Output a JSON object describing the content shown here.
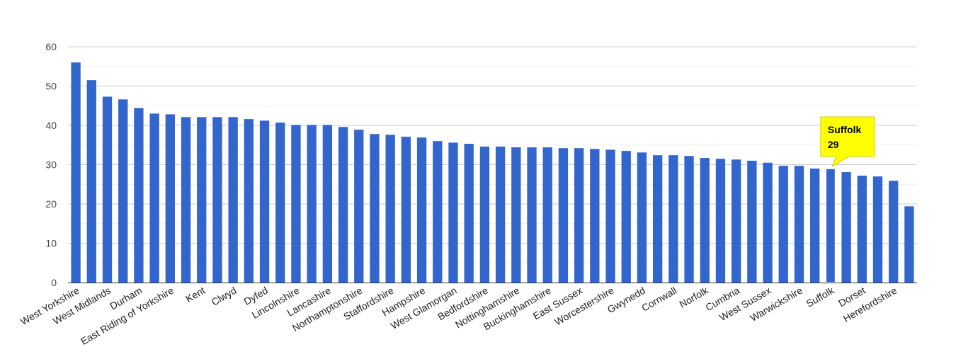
{
  "chart_data": {
    "type": "bar",
    "title": "",
    "xlabel": "",
    "ylabel": "",
    "ylim": [
      0,
      60
    ],
    "yticks": [
      0,
      10,
      20,
      30,
      40,
      50,
      60
    ],
    "grid": true,
    "bar_color": "#3366cc",
    "highlight_color": "#ffff00",
    "categories": [
      "West Yorkshire",
      "",
      "West Midlands",
      "",
      "Durham",
      "",
      "East Riding of Yorkshire",
      "",
      "Kent",
      "",
      "Clwyd",
      "",
      "Dyfed",
      "",
      "Lincolnshire",
      "",
      "Lancashire",
      "",
      "Northamptonshire",
      "",
      "Staffordshire",
      "",
      "Hampshire",
      "",
      "West Glamorgan",
      "",
      "Bedfordshire",
      "",
      "Nottinghamshire",
      "",
      "Buckinghamshire",
      "",
      "East Sussex",
      "",
      "Worcestershire",
      "",
      "Gwynedd",
      "",
      "Cornwall",
      "",
      "Norfolk",
      "",
      "Cumbria",
      "",
      "West Sussex",
      "",
      "Warwickshire",
      "",
      "Suffolk",
      "",
      "Dorset",
      "",
      "Herefordshire",
      ""
    ],
    "values": [
      56,
      51.5,
      47.3,
      46.6,
      44.4,
      43,
      42.8,
      42.1,
      42.1,
      42.1,
      42.1,
      41.6,
      41.2,
      40.7,
      40.1,
      40.1,
      40.1,
      39.6,
      38.9,
      37.8,
      37.6,
      37.1,
      36.9,
      36,
      35.6,
      35.3,
      34.6,
      34.6,
      34.4,
      34.4,
      34.4,
      34.2,
      34.2,
      34,
      33.8,
      33.5,
      33.1,
      32.4,
      32.4,
      32.2,
      31.7,
      31.5,
      31.3,
      31,
      30.5,
      29.7,
      29.7,
      29,
      29,
      28.1,
      27.2,
      27,
      25.9,
      19.4
    ],
    "highlight_index": 48,
    "tooltip": {
      "name": "Suffolk",
      "value": "29"
    }
  }
}
